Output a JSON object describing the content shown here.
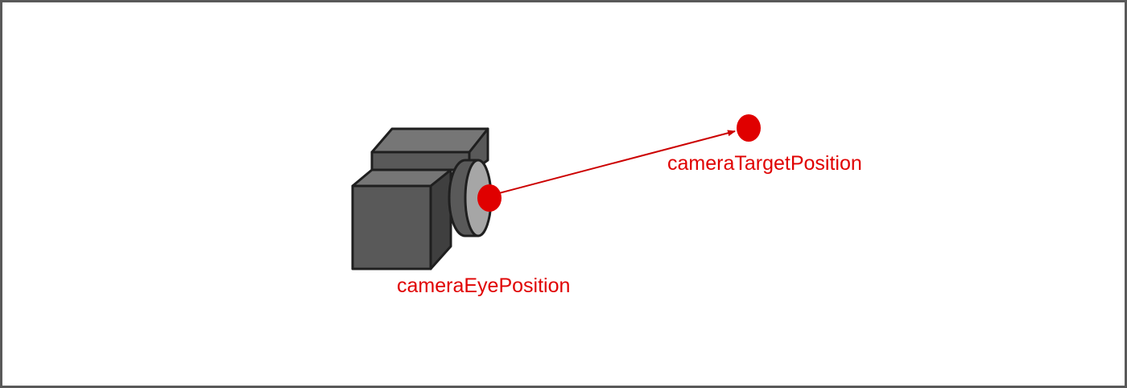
{
  "labels": {
    "eye": "cameraEyePosition",
    "target": "cameraTargetPosition"
  },
  "icons": {
    "camera": "camera-icon"
  },
  "colors": {
    "accent": "#e00000",
    "arrow": "#cc0000",
    "camera_body": "#595959",
    "camera_top": "#767676",
    "camera_outline": "#1f1f1f",
    "lens_face": "#a6a6a6",
    "frame_border": "#595959"
  }
}
